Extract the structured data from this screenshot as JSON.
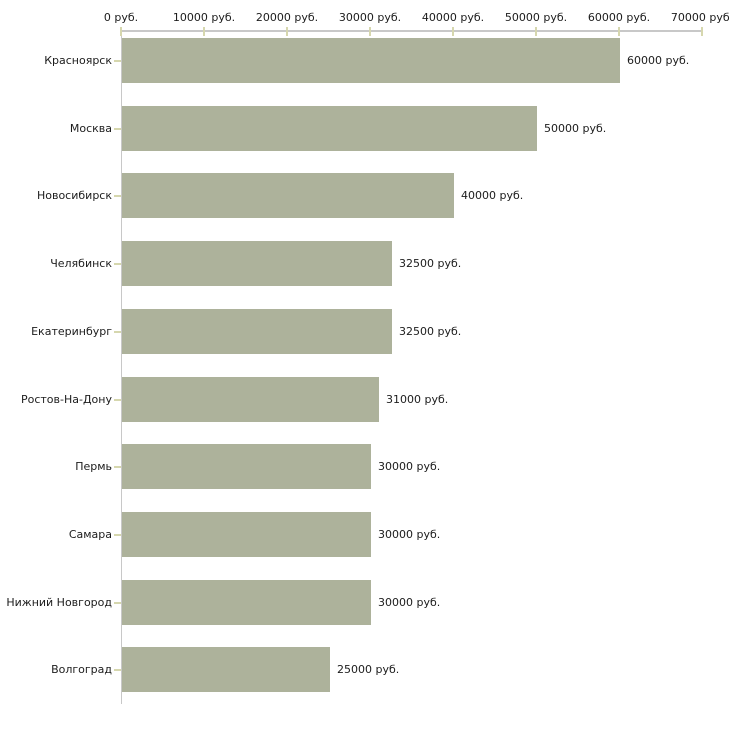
{
  "chart_data": {
    "type": "bar",
    "orientation": "horizontal",
    "title": "",
    "xlabel": "",
    "ylabel": "",
    "categories": [
      "Красноярск",
      "Москва",
      "Новосибирск",
      "Челябинск",
      "Екатеринбург",
      "Ростов-На-Дону",
      "Пермь",
      "Самара",
      "Нижний Новгород",
      "Волгоград"
    ],
    "values": [
      60000,
      50000,
      40000,
      32500,
      32500,
      31000,
      30000,
      30000,
      30000,
      25000
    ],
    "value_labels": [
      "60000 руб.",
      "50000 руб.",
      "40000 руб.",
      "32500 руб.",
      "32500 руб.",
      "31000 руб.",
      "30000 руб.",
      "30000 руб.",
      "30000 руб.",
      "25000 руб."
    ],
    "x_axis": {
      "position": "top",
      "xlim": [
        0,
        70000
      ],
      "ticks": [
        0,
        10000,
        20000,
        30000,
        40000,
        50000,
        60000,
        70000
      ],
      "tick_labels": [
        "0 руб.",
        "10000 руб.",
        "20000 руб.",
        "30000 руб.",
        "40000 руб.",
        "50000 руб.",
        "60000 руб.",
        "70000 руб."
      ]
    },
    "legend": null,
    "grid": false,
    "colors": {
      "bar": "#adb29b",
      "axis_line": "#c8c8c8",
      "tick_mark": "#d6d7ae",
      "text": "#1c1c1c",
      "background": "#ffffff"
    }
  }
}
